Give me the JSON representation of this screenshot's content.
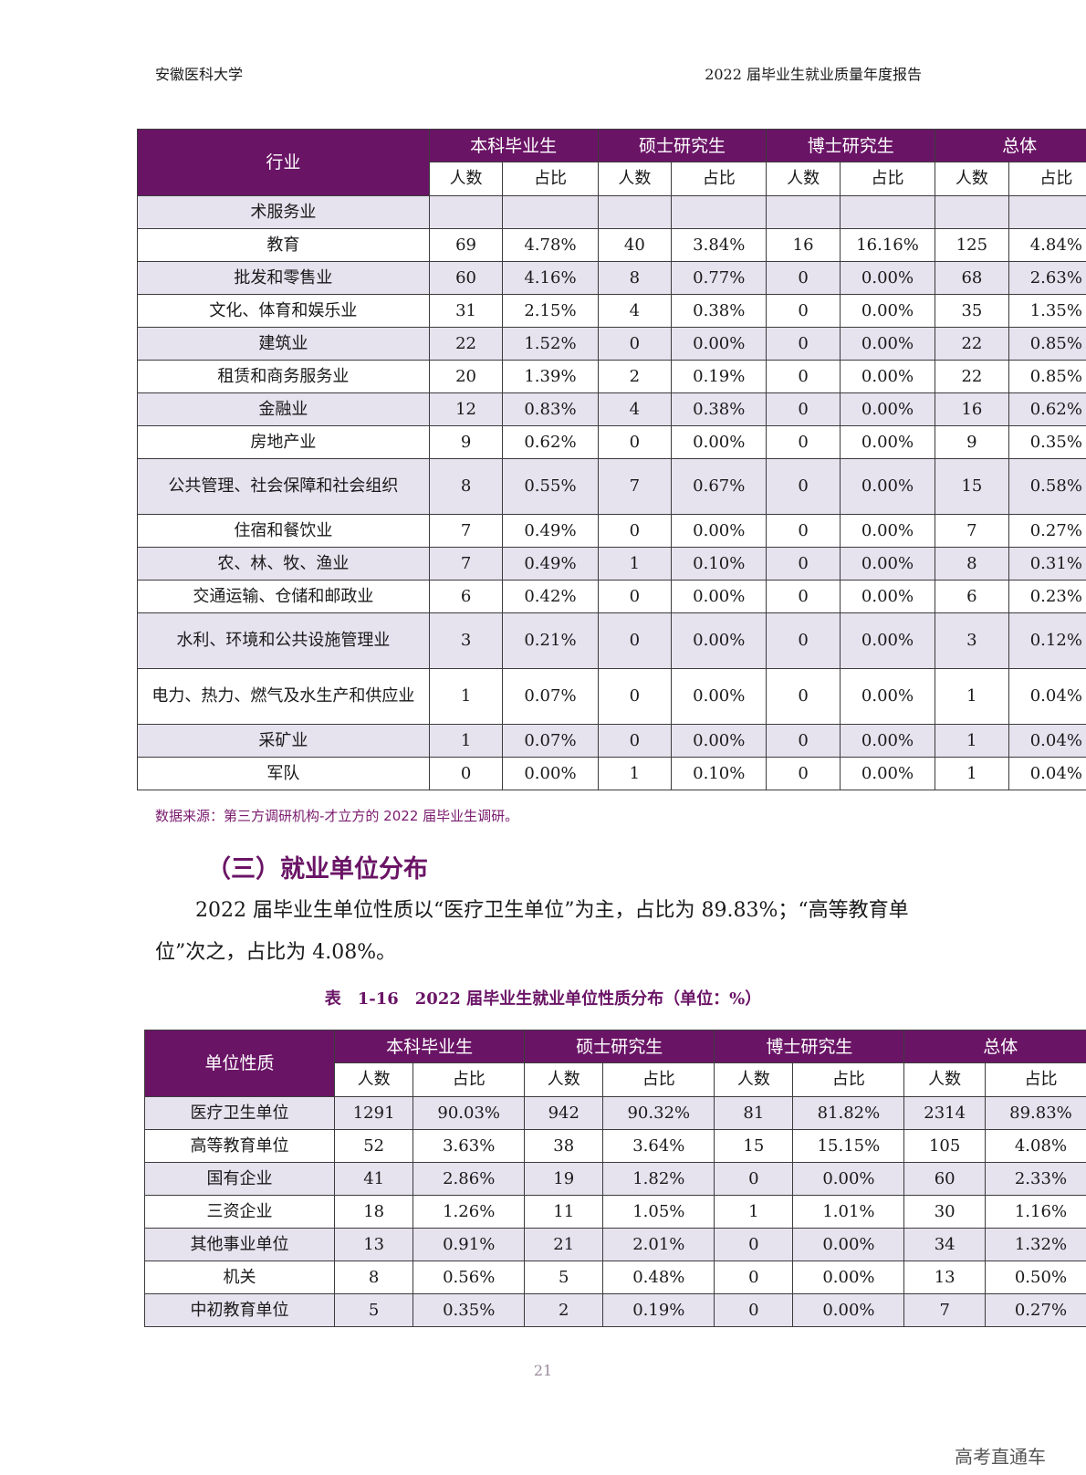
{
  "header": {
    "left": "安徽医科大学",
    "right": "2022 届毕业生就业质量年度报告"
  },
  "table1": {
    "first_col_header": "行业",
    "groups": [
      "本科毕业生",
      "硕士研究生",
      "博士研究生",
      "总体"
    ],
    "sub_headers": [
      "人数",
      "占比"
    ],
    "rows": [
      {
        "label": "术服务业",
        "cells": [
          "",
          "",
          "",
          "",
          "",
          "",
          "",
          ""
        ]
      },
      {
        "label": "教育",
        "cells": [
          "69",
          "4.78%",
          "40",
          "3.84%",
          "16",
          "16.16%",
          "125",
          "4.84%"
        ]
      },
      {
        "label": "批发和零售业",
        "cells": [
          "60",
          "4.16%",
          "8",
          "0.77%",
          "0",
          "0.00%",
          "68",
          "2.63%"
        ]
      },
      {
        "label": "文化、体育和娱乐业",
        "cells": [
          "31",
          "2.15%",
          "4",
          "0.38%",
          "0",
          "0.00%",
          "35",
          "1.35%"
        ]
      },
      {
        "label": "建筑业",
        "cells": [
          "22",
          "1.52%",
          "0",
          "0.00%",
          "0",
          "0.00%",
          "22",
          "0.85%"
        ]
      },
      {
        "label": "租赁和商务服务业",
        "cells": [
          "20",
          "1.39%",
          "2",
          "0.19%",
          "0",
          "0.00%",
          "22",
          "0.85%"
        ]
      },
      {
        "label": "金融业",
        "cells": [
          "12",
          "0.83%",
          "4",
          "0.38%",
          "0",
          "0.00%",
          "16",
          "0.62%"
        ]
      },
      {
        "label": "房地产业",
        "cells": [
          "9",
          "0.62%",
          "0",
          "0.00%",
          "0",
          "0.00%",
          "9",
          "0.35%"
        ]
      },
      {
        "label": "公共管理、社会保障和社会组织",
        "cells": [
          "8",
          "0.55%",
          "7",
          "0.67%",
          "0",
          "0.00%",
          "15",
          "0.58%"
        ]
      },
      {
        "label": "住宿和餐饮业",
        "cells": [
          "7",
          "0.49%",
          "0",
          "0.00%",
          "0",
          "0.00%",
          "7",
          "0.27%"
        ]
      },
      {
        "label": "农、林、牧、渔业",
        "cells": [
          "7",
          "0.49%",
          "1",
          "0.10%",
          "0",
          "0.00%",
          "8",
          "0.31%"
        ]
      },
      {
        "label": "交通运输、仓储和邮政业",
        "cells": [
          "6",
          "0.42%",
          "0",
          "0.00%",
          "0",
          "0.00%",
          "6",
          "0.23%"
        ]
      },
      {
        "label": "水利、环境和公共设施管理业",
        "cells": [
          "3",
          "0.21%",
          "0",
          "0.00%",
          "0",
          "0.00%",
          "3",
          "0.12%"
        ]
      },
      {
        "label": "电力、热力、燃气及水生产和供应业",
        "cells": [
          "1",
          "0.07%",
          "0",
          "0.00%",
          "0",
          "0.00%",
          "1",
          "0.04%"
        ]
      },
      {
        "label": "采矿业",
        "cells": [
          "1",
          "0.07%",
          "0",
          "0.00%",
          "0",
          "0.00%",
          "1",
          "0.04%"
        ]
      },
      {
        "label": "军队",
        "cells": [
          "0",
          "0.00%",
          "1",
          "0.10%",
          "0",
          "0.00%",
          "1",
          "0.04%"
        ]
      }
    ]
  },
  "source_note": "数据来源：第三方调研机构-才立方的 2022 届毕业生调研。",
  "section_title": "（三）就业单位分布",
  "paragraph": "2022 届毕业生单位性质以“医疗卫生单位”为主，占比为 89.83%；“高等教育单位”次之，占比为 4.08%。",
  "table2_caption": "表　1-16　2022 届毕业生就业单位性质分布（单位：%）",
  "table2": {
    "first_col_header": "单位性质",
    "groups": [
      "本科毕业生",
      "硕士研究生",
      "博士研究生",
      "总体"
    ],
    "sub_headers": [
      "人数",
      "占比"
    ],
    "rows": [
      {
        "label": "医疗卫生单位",
        "cells": [
          "1291",
          "90.03%",
          "942",
          "90.32%",
          "81",
          "81.82%",
          "2314",
          "89.83%"
        ]
      },
      {
        "label": "高等教育单位",
        "cells": [
          "52",
          "3.63%",
          "38",
          "3.64%",
          "15",
          "15.15%",
          "105",
          "4.08%"
        ]
      },
      {
        "label": "国有企业",
        "cells": [
          "41",
          "2.86%",
          "19",
          "1.82%",
          "0",
          "0.00%",
          "60",
          "2.33%"
        ]
      },
      {
        "label": "三资企业",
        "cells": [
          "18",
          "1.26%",
          "11",
          "1.05%",
          "1",
          "1.01%",
          "30",
          "1.16%"
        ]
      },
      {
        "label": "其他事业单位",
        "cells": [
          "13",
          "0.91%",
          "21",
          "2.01%",
          "0",
          "0.00%",
          "34",
          "1.32%"
        ]
      },
      {
        "label": "机关",
        "cells": [
          "8",
          "0.56%",
          "5",
          "0.48%",
          "0",
          "0.00%",
          "13",
          "0.50%"
        ]
      },
      {
        "label": "中初教育单位",
        "cells": [
          "5",
          "0.35%",
          "2",
          "0.19%",
          "0",
          "0.00%",
          "7",
          "0.27%"
        ]
      }
    ]
  },
  "page_number": "21",
  "watermark": "高考直通车",
  "colors": {
    "header_fill": "#6a1466",
    "band_fill": "#e6e2ee",
    "accent_text": "#6a1466"
  }
}
